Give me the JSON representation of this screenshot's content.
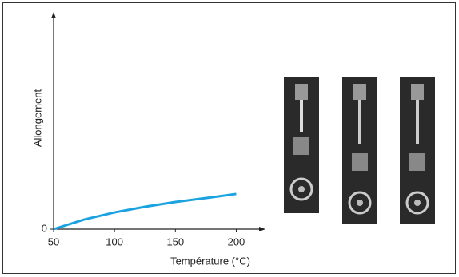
{
  "chart_data": {
    "type": "line",
    "x_label": "Température (°C)",
    "y_label": "Allongement",
    "x": [
      50,
      75,
      100,
      125,
      150,
      175,
      200
    ],
    "values": [
      0,
      4.4,
      7.7,
      10.3,
      12.5,
      14.3,
      16.2
    ],
    "color": "#1aa3e0",
    "xlim": [
      50,
      224
    ],
    "xticks": [
      50,
      100,
      150,
      200
    ],
    "ylim": [
      0,
      100
    ],
    "yticks": [
      0
    ],
    "grid": false
  }
}
